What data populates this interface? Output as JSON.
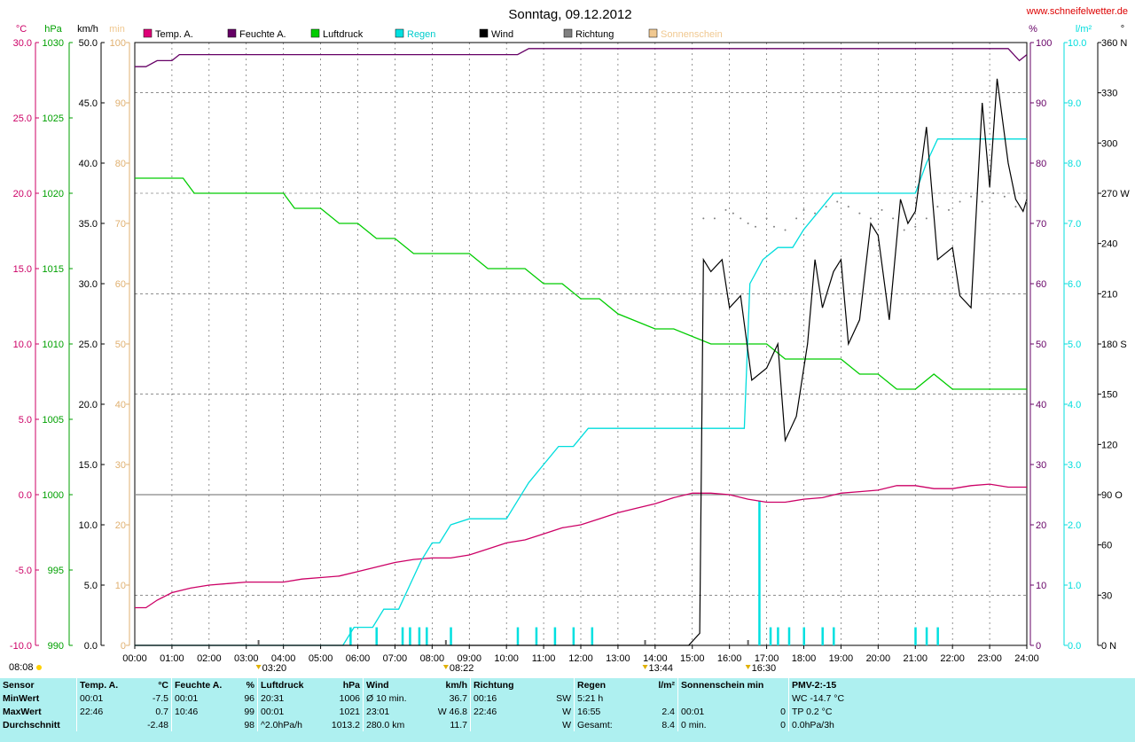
{
  "chart_data": {
    "type": "line",
    "title": "Sonntag, 09.12.2012",
    "watermark": "www.schneifelwetter.de",
    "xlabel": "",
    "x_ticks": [
      "00:00",
      "01:00",
      "02:00",
      "03:00",
      "04:00",
      "05:00",
      "06:00",
      "07:00",
      "08:00",
      "09:00",
      "10:00",
      "11:00",
      "12:00",
      "13:00",
      "14:00",
      "15:00",
      "16:00",
      "17:00",
      "18:00",
      "19:00",
      "20:00",
      "21:00",
      "22:00",
      "23:00",
      "24:00"
    ],
    "xlim": [
      0,
      24
    ],
    "axes": {
      "temp": {
        "unit": "°C",
        "ylim": [
          -10,
          30
        ],
        "ticks": [
          "30.0",
          "25.0",
          "20.0",
          "15.0",
          "10.0",
          "5.0",
          "0.0",
          "-5.0",
          "-10.0"
        ],
        "color": "#cc0066"
      },
      "pressure": {
        "unit": "hPa",
        "ylim": [
          990,
          1030
        ],
        "ticks": [
          "1030",
          "1025",
          "1020",
          "1015",
          "1010",
          "1005",
          "1000",
          "995",
          "990"
        ],
        "color": "#00a000"
      },
      "wind": {
        "unit": "km/h",
        "ylim": [
          0,
          50
        ],
        "ticks": [
          "50.0",
          "45.0",
          "40.0",
          "35.0",
          "30.0",
          "25.0",
          "20.0",
          "15.0",
          "10.0",
          "5.0",
          "0.0"
        ],
        "color": "#000000"
      },
      "sun": {
        "unit": "min",
        "ylim": [
          0,
          100
        ],
        "ticks": [
          "100",
          "90",
          "80",
          "70",
          "60",
          "50",
          "40",
          "30",
          "20",
          "10",
          "0"
        ],
        "color": "#f0c890"
      },
      "humidity": {
        "unit": "%",
        "ylim": [
          0,
          100
        ],
        "ticks": [
          "100",
          "90",
          "80",
          "70",
          "60",
          "50",
          "40",
          "30",
          "20",
          "10",
          "0"
        ],
        "color": "#660066"
      },
      "rain": {
        "unit": "l/m²",
        "ylim": [
          0,
          10
        ],
        "ticks": [
          "10.0",
          "9.0",
          "8.0",
          "7.0",
          "6.0",
          "5.0",
          "4.0",
          "3.0",
          "2.0",
          "1.0",
          "0.0"
        ],
        "color": "#00dddd"
      },
      "direction": {
        "unit": "°",
        "ylim": [
          0,
          360
        ],
        "ticks": [
          "360 N",
          "330",
          "300",
          "270 W",
          "240",
          "210",
          "180 S",
          "150",
          "120",
          "90 O",
          "60",
          "30",
          "0 N"
        ],
        "color": "#000000"
      }
    },
    "legend": [
      {
        "name": "Temp. A.",
        "color": "#dd0077"
      },
      {
        "name": "Feuchte A.",
        "color": "#660066"
      },
      {
        "name": "Luftdruck",
        "color": "#00cc00"
      },
      {
        "name": "Regen",
        "color": "#00e0e0"
      },
      {
        "name": "Wind",
        "color": "#000000"
      },
      {
        "name": "Richtung",
        "color": "#808080"
      },
      {
        "name": "Sonnenschein",
        "color": "#f0c890"
      }
    ],
    "series": [
      {
        "name": "Temp. A.",
        "axis": "temp",
        "color": "#cc0066",
        "x": [
          0,
          0.3,
          0.6,
          1,
          1.5,
          2,
          2.5,
          3,
          3.5,
          4,
          4.5,
          5,
          5.5,
          6,
          6.5,
          7,
          7.5,
          8,
          8.5,
          9,
          9.5,
          10,
          10.5,
          11,
          11.5,
          12,
          12.5,
          13,
          13.5,
          14,
          14.5,
          15,
          15.5,
          16,
          16.5,
          17,
          17.5,
          18,
          18.5,
          19,
          19.5,
          20,
          20.5,
          21,
          21.5,
          22,
          22.5,
          23,
          23.5,
          24
        ],
        "y": [
          -7.5,
          -7.5,
          -7.0,
          -6.5,
          -6.2,
          -6.0,
          -5.9,
          -5.8,
          -5.8,
          -5.8,
          -5.6,
          -5.5,
          -5.4,
          -5.1,
          -4.8,
          -4.5,
          -4.3,
          -4.2,
          -4.2,
          -4.0,
          -3.6,
          -3.2,
          -3.0,
          -2.6,
          -2.2,
          -2.0,
          -1.6,
          -1.2,
          -0.9,
          -0.6,
          -0.2,
          0.1,
          0.1,
          0.0,
          -0.3,
          -0.5,
          -0.5,
          -0.3,
          -0.2,
          0.1,
          0.2,
          0.3,
          0.6,
          0.6,
          0.4,
          0.4,
          0.6,
          0.7,
          0.5,
          0.5
        ]
      },
      {
        "name": "Feuchte A.",
        "axis": "humidity",
        "color": "#660066",
        "x": [
          0,
          0.3,
          0.6,
          1,
          1.2,
          2,
          4,
          6,
          8,
          10,
          10.3,
          10.6,
          12,
          14,
          16,
          18,
          20,
          22,
          23.5,
          23.8,
          24
        ],
        "y": [
          96,
          96,
          97,
          97,
          98,
          98,
          98,
          98,
          98,
          98,
          98,
          99,
          99,
          99,
          99,
          99,
          99,
          99,
          99,
          97,
          98
        ]
      },
      {
        "name": "Luftdruck",
        "axis": "pressure",
        "color": "#00cc00",
        "x": [
          0,
          1.3,
          1.6,
          4,
          4.3,
          5,
          5.5,
          6,
          6.5,
          7,
          7.5,
          8,
          9,
          9.5,
          10,
          10.5,
          11,
          11.5,
          12,
          12.5,
          13,
          14,
          14.5,
          15.5,
          16,
          17,
          17.5,
          19,
          19.5,
          20,
          20.5,
          21,
          21.5,
          22,
          24
        ],
        "y": [
          1021,
          1021,
          1020,
          1020,
          1019,
          1019,
          1018,
          1018,
          1017,
          1017,
          1016,
          1016,
          1016,
          1015,
          1015,
          1015,
          1014,
          1014,
          1013,
          1013,
          1012,
          1011,
          1011,
          1010,
          1010,
          1010,
          1009,
          1009,
          1008,
          1008,
          1007,
          1007,
          1008,
          1007,
          1007
        ]
      },
      {
        "name": "Regen",
        "axis": "rain",
        "color": "#00dddd",
        "x": [
          0,
          5.6,
          5.9,
          6.4,
          6.7,
          7.1,
          7.4,
          7.7,
          8.0,
          8.2,
          8.5,
          9.0,
          9.5,
          10.0,
          10.3,
          10.6,
          11.0,
          11.4,
          11.8,
          12.2,
          12.6,
          13.0,
          14,
          16.0,
          16.4,
          16.55,
          16.9,
          17.3,
          17.7,
          18.0,
          18.4,
          18.8,
          19.2,
          20,
          21.0,
          21.3,
          21.6,
          22.0,
          24
        ],
        "y": [
          0,
          0,
          0.3,
          0.3,
          0.6,
          0.6,
          1.0,
          1.4,
          1.7,
          1.7,
          2.0,
          2.1,
          2.1,
          2.1,
          2.4,
          2.7,
          3.0,
          3.3,
          3.3,
          3.6,
          3.6,
          3.6,
          3.6,
          3.6,
          3.6,
          6.0,
          6.4,
          6.6,
          6.6,
          6.9,
          7.2,
          7.5,
          7.5,
          7.5,
          7.5,
          8.0,
          8.4,
          8.4,
          8.4
        ]
      },
      {
        "name": "Wind",
        "axis": "wind",
        "color": "#000000",
        "x": [
          0,
          14.9,
          15.2,
          15.3,
          15.5,
          15.8,
          16.0,
          16.3,
          16.6,
          17.0,
          17.3,
          17.5,
          17.8,
          18.1,
          18.3,
          18.5,
          18.8,
          19.0,
          19.2,
          19.5,
          19.8,
          20.0,
          20.3,
          20.6,
          20.8,
          21.0,
          21.3,
          21.6,
          22.0,
          22.2,
          22.5,
          22.8,
          23.0,
          23.2,
          23.5,
          23.7,
          23.9,
          24
        ],
        "y": [
          0,
          0,
          1,
          32,
          31,
          32,
          28,
          29,
          22,
          23,
          25,
          17,
          19,
          25,
          32,
          28,
          31,
          32,
          25,
          27,
          35,
          34,
          27,
          37,
          35,
          36,
          43,
          32,
          33,
          29,
          28,
          45,
          38,
          47,
          40,
          37,
          36,
          37
        ]
      },
      {
        "name": "Richtung",
        "axis": "direction",
        "color": "#808080",
        "style": "dots",
        "x": [
          15.3,
          15.6,
          15.9,
          16.1,
          16.3,
          16.5,
          16.7,
          17.0,
          17.2,
          17.5,
          17.8,
          18.0,
          18.3,
          18.6,
          18.9,
          19.2,
          19.5,
          19.8,
          20.1,
          20.4,
          20.7,
          21.0,
          21.3,
          21.6,
          21.9,
          22.2,
          22.5,
          22.8,
          23.1,
          23.4,
          23.7,
          24.0
        ],
        "y": [
          255,
          255,
          260,
          258,
          255,
          252,
          250,
          255,
          250,
          248,
          255,
          260,
          258,
          262,
          265,
          262,
          258,
          255,
          260,
          255,
          248,
          250,
          255,
          262,
          260,
          265,
          268,
          265,
          270,
          268,
          262,
          265
        ]
      }
    ],
    "rain_bars": {
      "axis": "rain",
      "x": [
        5.8,
        6.5,
        7.2,
        7.4,
        7.65,
        7.85,
        8.5,
        10.3,
        10.8,
        11.3,
        11.8,
        12.3,
        16.8,
        17.1,
        17.3,
        17.6,
        18.0,
        18.5,
        18.8,
        21.0,
        21.3,
        21.6
      ],
      "values": [
        0.3,
        0.3,
        0.3,
        0.3,
        0.3,
        0.3,
        0.3,
        0.3,
        0.3,
        0.3,
        0.3,
        0.3,
        2.4,
        0.3,
        0.3,
        0.3,
        0.3,
        0.3,
        0.3,
        0.3,
        0.3,
        0.3
      ]
    },
    "markers": [
      {
        "label": "08:08",
        "x": 0
      },
      {
        "label": "03:20",
        "x": 3.33
      },
      {
        "label": "08:22",
        "x": 8.37
      },
      {
        "label": "13:44",
        "x": 13.73
      },
      {
        "label": "16:30",
        "x": 16.5
      }
    ],
    "reference_line": {
      "axis": "temp",
      "y": 0
    }
  },
  "stats": {
    "columns": [
      {
        "title": "Sensor",
        "unit": ""
      },
      {
        "title": "Temp. A.",
        "unit": "°C"
      },
      {
        "title": "Feuchte A.",
        "unit": "%"
      },
      {
        "title": "Luftdruck",
        "unit": "hPa"
      },
      {
        "title": "Wind",
        "unit": "km/h"
      },
      {
        "title": "Richtung",
        "unit": ""
      },
      {
        "title": "Regen",
        "unit": "l/m²"
      },
      {
        "title": "Sonnenschein min",
        "unit": ""
      },
      {
        "title": "PMV-2:-15",
        "unit": ""
      }
    ],
    "rows": [
      {
        "label": "MinWert",
        "cells": [
          [
            "00:01",
            "-7.5"
          ],
          [
            "00:01",
            "96"
          ],
          [
            "20:31",
            "1006"
          ],
          [
            "Ø 10 min.",
            "36.7"
          ],
          [
            "00:16",
            "SW"
          ],
          [
            "5:21 h",
            ""
          ],
          [
            "",
            ""
          ],
          [
            "WC -14.7 °C",
            ""
          ]
        ]
      },
      {
        "label": "MaxWert",
        "cells": [
          [
            "22:46",
            "0.7"
          ],
          [
            "10:46",
            "99"
          ],
          [
            "00:01",
            "1021"
          ],
          [
            "23:01",
            "W 46.8"
          ],
          [
            "22:46",
            "W"
          ],
          [
            "16:55",
            "2.4"
          ],
          [
            "00:01",
            "0"
          ],
          [
            "TP 0.2 °C",
            ""
          ]
        ]
      },
      {
        "label": "Durchschnitt",
        "cells": [
          [
            "",
            "-2.48"
          ],
          [
            "",
            "98"
          ],
          [
            "^2.0hPa/h",
            "1013.2"
          ],
          [
            "280.0 km",
            "11.7"
          ],
          [
            "",
            "W"
          ],
          [
            "Gesamt:",
            "8.4"
          ],
          [
            "0 min.",
            "0"
          ],
          [
            "0.0hPa/3h",
            ""
          ]
        ]
      }
    ]
  }
}
